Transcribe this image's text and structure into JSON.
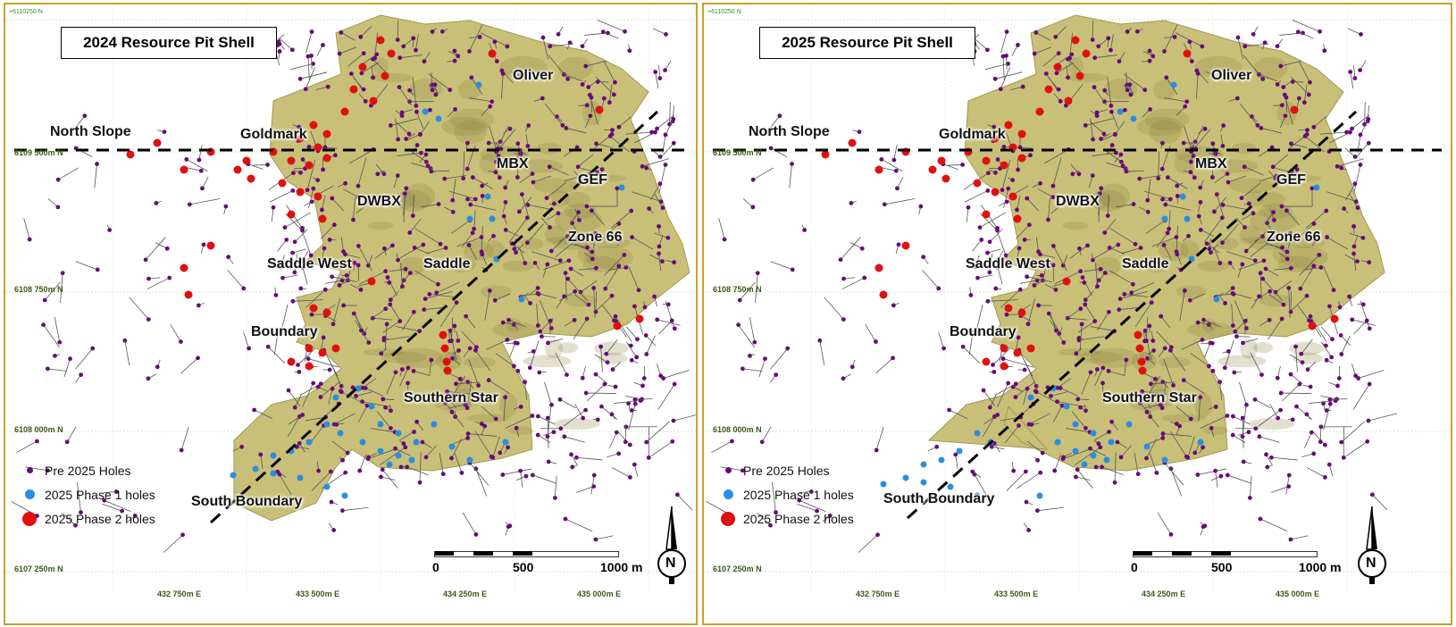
{
  "panels": [
    {
      "title": "2024 Resource Pit Shell",
      "top_grid_label": "+6110250 N",
      "zones": [
        "North Slope",
        "Goldmark",
        "Oliver",
        "MBX",
        "GEF",
        "DWBX",
        "Zone 66",
        "Saddle West",
        "Saddle",
        "Boundary",
        "Southern Star",
        "South Boundary"
      ]
    },
    {
      "title": "2025 Resource Pit Shell",
      "top_grid_label": "+6110250 N",
      "zones": [
        "North Slope",
        "Goldmark",
        "Oliver",
        "MBX",
        "GEF",
        "DWBX",
        "Zone 66",
        "Saddle West",
        "Saddle",
        "Boundary",
        "Southern Star",
        "South Boundary"
      ]
    }
  ],
  "legend": {
    "items": [
      {
        "label": "Pre 2025 Holes",
        "color": "#6a0a7a"
      },
      {
        "label": "2025 Phase 1 holes",
        "color": "#2a8ee0"
      },
      {
        "label": "2025 Phase 2 holes",
        "color": "#e01010"
      }
    ]
  },
  "grid": {
    "northing": [
      {
        "prefix": "6109",
        "suffix": "500m N"
      },
      {
        "prefix": "6108",
        "suffix": "750m N"
      },
      {
        "prefix": "6108",
        "suffix": "000m N"
      },
      {
        "prefix": "6107",
        "suffix": "250m N"
      }
    ],
    "easting": [
      {
        "prefix": "432",
        "suffix": "750m E"
      },
      {
        "prefix": "433",
        "suffix": "500m E"
      },
      {
        "prefix": "434",
        "suffix": "250m E"
      },
      {
        "prefix": "435",
        "suffix": "000m E"
      }
    ]
  },
  "scale_bar": {
    "labels": [
      "0",
      "500",
      "1000 m"
    ]
  },
  "north_arrow": {
    "label": "N"
  },
  "colors": {
    "pit_shell": "#c8c078",
    "frame": "#c9a227",
    "section_line": "#000000"
  }
}
